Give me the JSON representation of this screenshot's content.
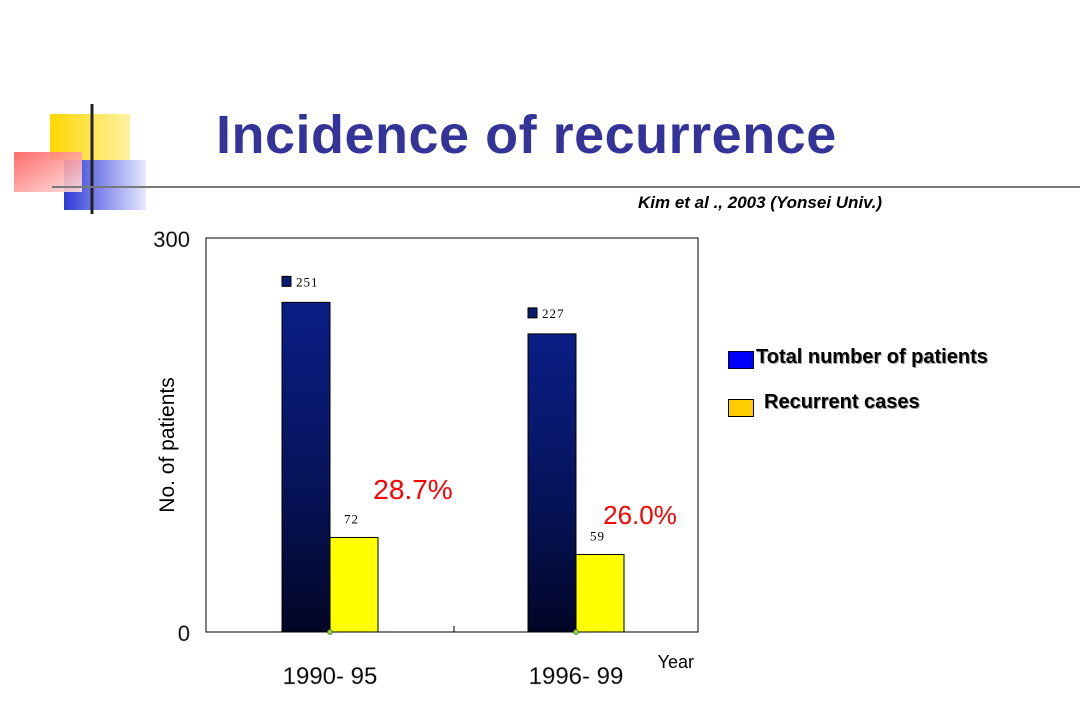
{
  "slide": {
    "title": "Incidence of recurrence",
    "citation": "Kim et al ., 2003  (Yonsei Univ.)"
  },
  "colors": {
    "title": "#33339a",
    "total_bar": "#0a1a6e",
    "recurrent_bar": "#ffff00",
    "percent_label": "#ff0000",
    "legend_total": "#0000ff",
    "legend_recurrent": "#ffcc00"
  },
  "chart_data": {
    "type": "bar",
    "title": "",
    "xlabel": "Year",
    "ylabel": "No. of patients",
    "ylim": [
      0,
      300
    ],
    "y_ticks": [
      0,
      300
    ],
    "categories": [
      "1990- 95",
      "1996- 99"
    ],
    "series": [
      {
        "name": "Total number of patients",
        "values": [
          251,
          227
        ],
        "value_labels": [
          "251",
          "227"
        ]
      },
      {
        "name": "Recurrent cases",
        "values": [
          72,
          59
        ],
        "value_labels": [
          "72",
          "59"
        ]
      }
    ],
    "annotations": [
      "28.7%",
      "26.0%"
    ],
    "grid": false,
    "legend_position": "right"
  }
}
